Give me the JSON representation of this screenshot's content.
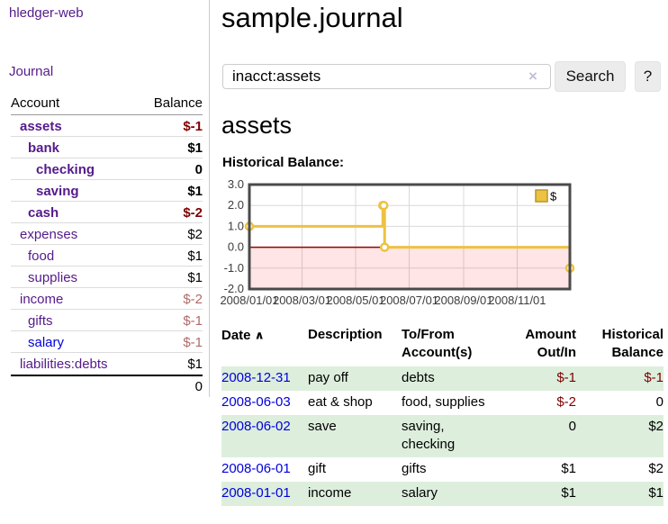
{
  "sidebar": {
    "brand": "hledger-web",
    "journal_link": "Journal",
    "accounts_table": {
      "header": {
        "account": "Account",
        "balance": "Balance"
      },
      "accounts": [
        {
          "label": "assets",
          "balance": "$-1",
          "indent": 0,
          "label_class": "bold-purple",
          "balance_class": "bold-negative"
        },
        {
          "label": "bank",
          "balance": "$1",
          "indent": 1,
          "label_class": "bold-purple",
          "balance_class": "bold-black"
        },
        {
          "label": "checking",
          "balance": "0",
          "indent": 2,
          "label_class": "bold-purple",
          "balance_class": "bold-black"
        },
        {
          "label": "saving",
          "balance": "$1",
          "indent": 2,
          "label_class": "bold-purple",
          "balance_class": "bold-black"
        },
        {
          "label": "cash",
          "balance": "$-2",
          "indent": 1,
          "label_class": "bold-purple",
          "balance_class": "bold-negative"
        },
        {
          "label": "expenses",
          "balance": "$2",
          "indent": 0,
          "label_class": "plain-purple",
          "balance_class": "plain-black"
        },
        {
          "label": "food",
          "balance": "$1",
          "indent": 1,
          "label_class": "plain-purple",
          "balance_class": "plain-black"
        },
        {
          "label": "supplies",
          "balance": "$1",
          "indent": 1,
          "label_class": "plain-purple",
          "balance_class": "plain-black"
        },
        {
          "label": "income",
          "balance": "$-2",
          "indent": 0,
          "label_class": "plain-purple",
          "balance_class": "muted-negative"
        },
        {
          "label": "gifts",
          "balance": "$-1",
          "indent": 1,
          "label_class": "plain-purple",
          "balance_class": "muted-negative"
        },
        {
          "label": "salary",
          "balance": "$-1",
          "indent": 1,
          "label_class": "plain-blue",
          "balance_class": "muted-negative"
        },
        {
          "label": "liabilities:debts",
          "balance": "$1",
          "indent": 0,
          "label_class": "plain-purple",
          "balance_class": "plain-black"
        }
      ],
      "total": "0"
    }
  },
  "main": {
    "title": "sample.journal",
    "search": {
      "value": "inacct:assets",
      "clear_icon": "×",
      "button_label": "Search",
      "help_label": "?"
    },
    "account_heading": "assets",
    "chart_heading": "Historical Balance:",
    "register_table": {
      "headers": [
        "Date",
        "Description",
        "To/From\nAccount(s)",
        "Amount\nOut/In",
        "Historical\nBalance"
      ],
      "sort_arrow": "∧",
      "rows": [
        {
          "date": "2008-12-31",
          "description": "pay off",
          "accounts": "debts",
          "amount": "$-1",
          "amount_negative": true,
          "balance": "$-1",
          "balance_negative": true,
          "shaded": true
        },
        {
          "date": "2008-06-03",
          "description": "eat & shop",
          "accounts": "food, supplies",
          "amount": "$-2",
          "amount_negative": true,
          "balance": "0",
          "balance_negative": false,
          "shaded": false
        },
        {
          "date": "2008-06-02",
          "description": "save",
          "accounts": "saving,\nchecking",
          "amount": "0",
          "amount_negative": false,
          "balance": "$2",
          "balance_negative": false,
          "shaded": true
        },
        {
          "date": "2008-06-01",
          "description": "gift",
          "accounts": "gifts",
          "amount": "$1",
          "amount_negative": false,
          "balance": "$2",
          "balance_negative": false,
          "shaded": false
        },
        {
          "date": "2008-01-01",
          "description": "income",
          "accounts": "salary",
          "amount": "$1",
          "amount_negative": false,
          "balance": "$1",
          "balance_negative": false,
          "shaded": true
        }
      ]
    }
  },
  "chart_data": {
    "type": "line",
    "step": true,
    "title": "Historical Balance",
    "series": [
      {
        "name": "$",
        "color": "#edc240",
        "points": [
          [
            "2008-01-01",
            1
          ],
          [
            "2008-06-01",
            2
          ],
          [
            "2008-06-02",
            2
          ],
          [
            "2008-06-03",
            0
          ],
          [
            "2008-12-31",
            -1
          ]
        ]
      }
    ],
    "xrange": [
      "2008-01-01",
      "2008-12-31"
    ],
    "ylim": [
      -2,
      3
    ],
    "yticks": [
      {
        "v": 3,
        "label": "3.0"
      },
      {
        "v": 2,
        "label": "2.0"
      },
      {
        "v": 1,
        "label": "1.0"
      },
      {
        "v": 0,
        "label": "0.0"
      },
      {
        "v": -1,
        "label": "-1.0"
      },
      {
        "v": -2,
        "label": "-2.0"
      }
    ],
    "xticks": [
      {
        "d": "2008-01-01",
        "label": "2008/01/01"
      },
      {
        "d": "2008-03-01",
        "label": "2008/03/01"
      },
      {
        "d": "2008-05-01",
        "label": "2008/05/01"
      },
      {
        "d": "2008-07-01",
        "label": "2008/07/01"
      },
      {
        "d": "2008-09-01",
        "label": "2008/09/01"
      },
      {
        "d": "2008-11-01",
        "label": "2008/11/01"
      }
    ],
    "legend": {
      "position": "top-right",
      "label": "$"
    },
    "grid": true,
    "colors": {
      "line": "#edc240",
      "marker_fill": "#ffffff",
      "legend_box_border": "#b8962a",
      "negative_fill": "rgba(255,0,0,0.10)",
      "zero_line": "#990000",
      "gridline": "#d9d9d9",
      "plot_border": "#4a4a4a",
      "tick_text": "#3c3c3c"
    }
  }
}
